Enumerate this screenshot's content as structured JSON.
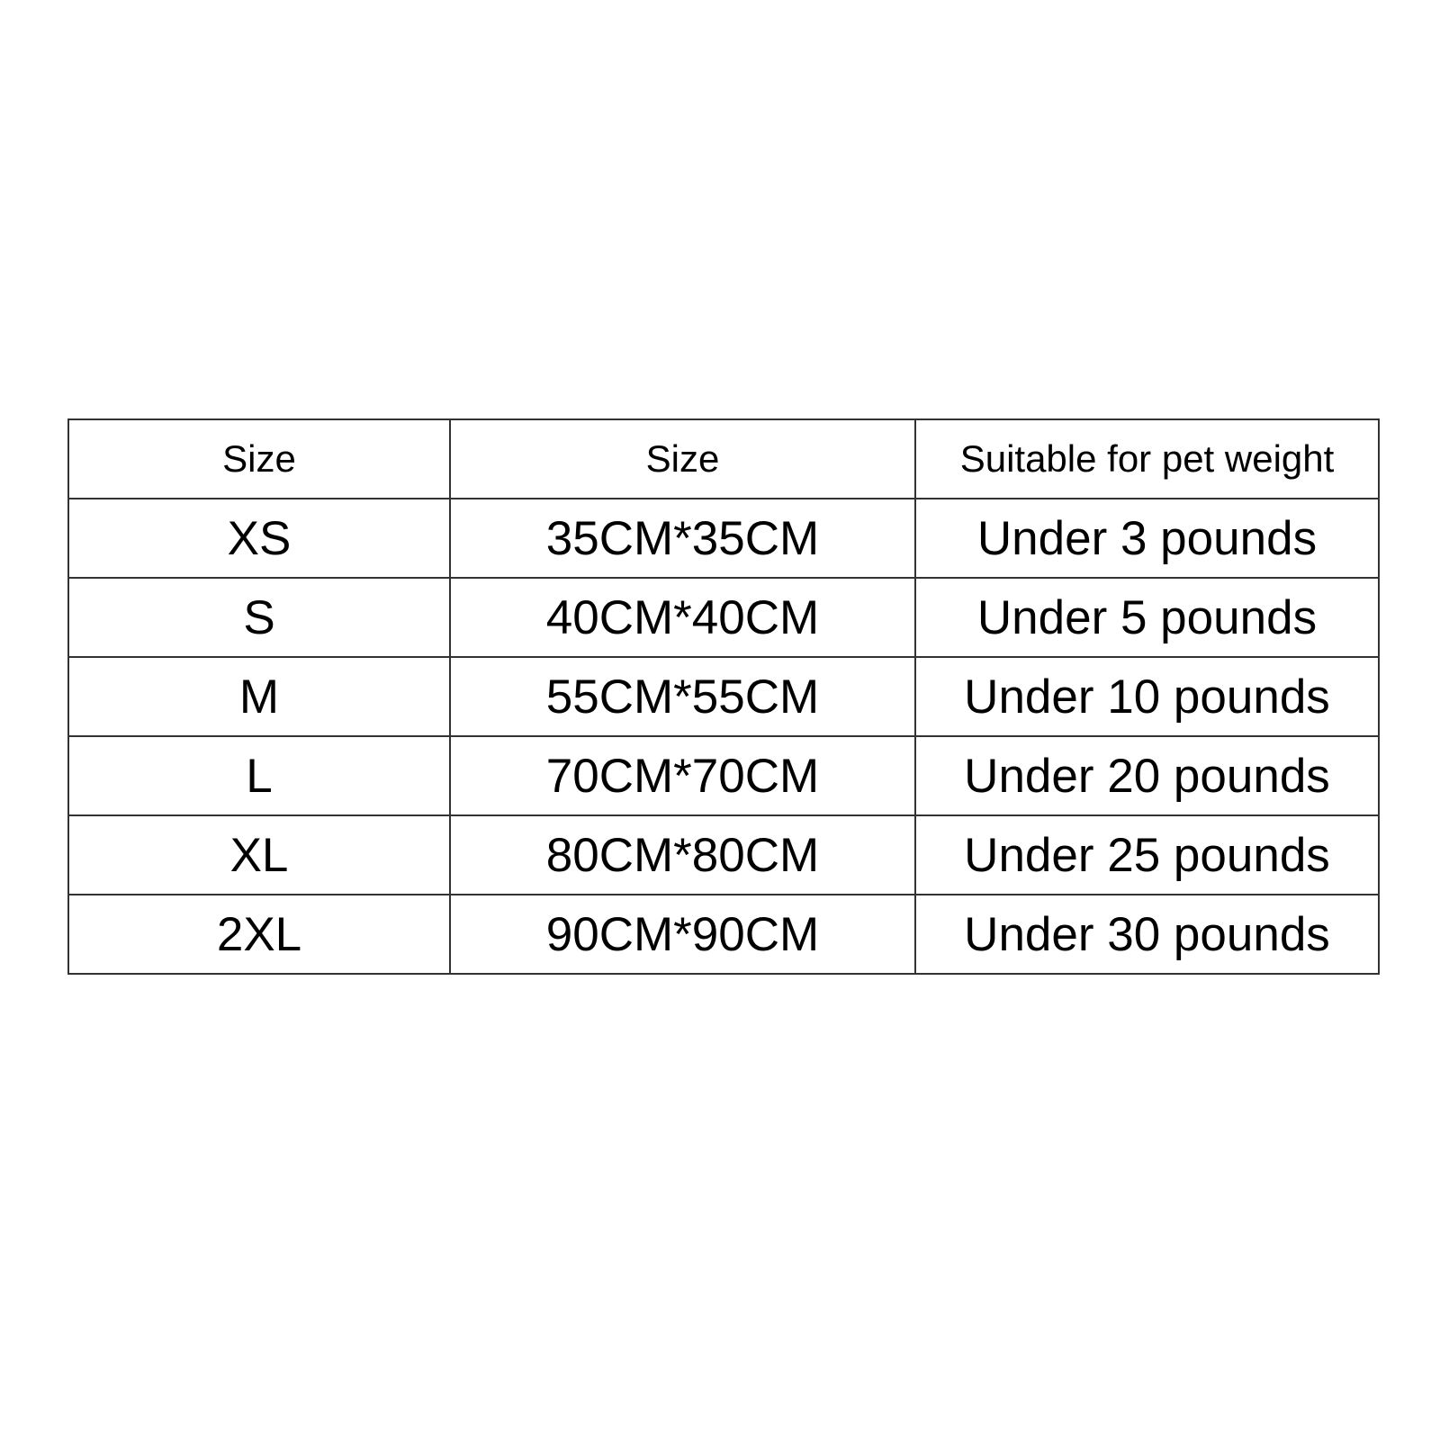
{
  "table": {
    "headers": [
      "Size",
      "Size",
      "Suitable for pet weight"
    ],
    "rows": [
      [
        "XS",
        "35CM*35CM",
        "Under 3 pounds"
      ],
      [
        "S",
        "40CM*40CM",
        "Under 5 pounds"
      ],
      [
        "M",
        "55CM*55CM",
        "Under 10 pounds"
      ],
      [
        "L",
        "70CM*70CM",
        "Under 20 pounds"
      ],
      [
        "XL",
        "80CM*80CM",
        "Under 25 pounds"
      ],
      [
        "2XL",
        "90CM*90CM",
        "Under 30 pounds"
      ]
    ]
  }
}
